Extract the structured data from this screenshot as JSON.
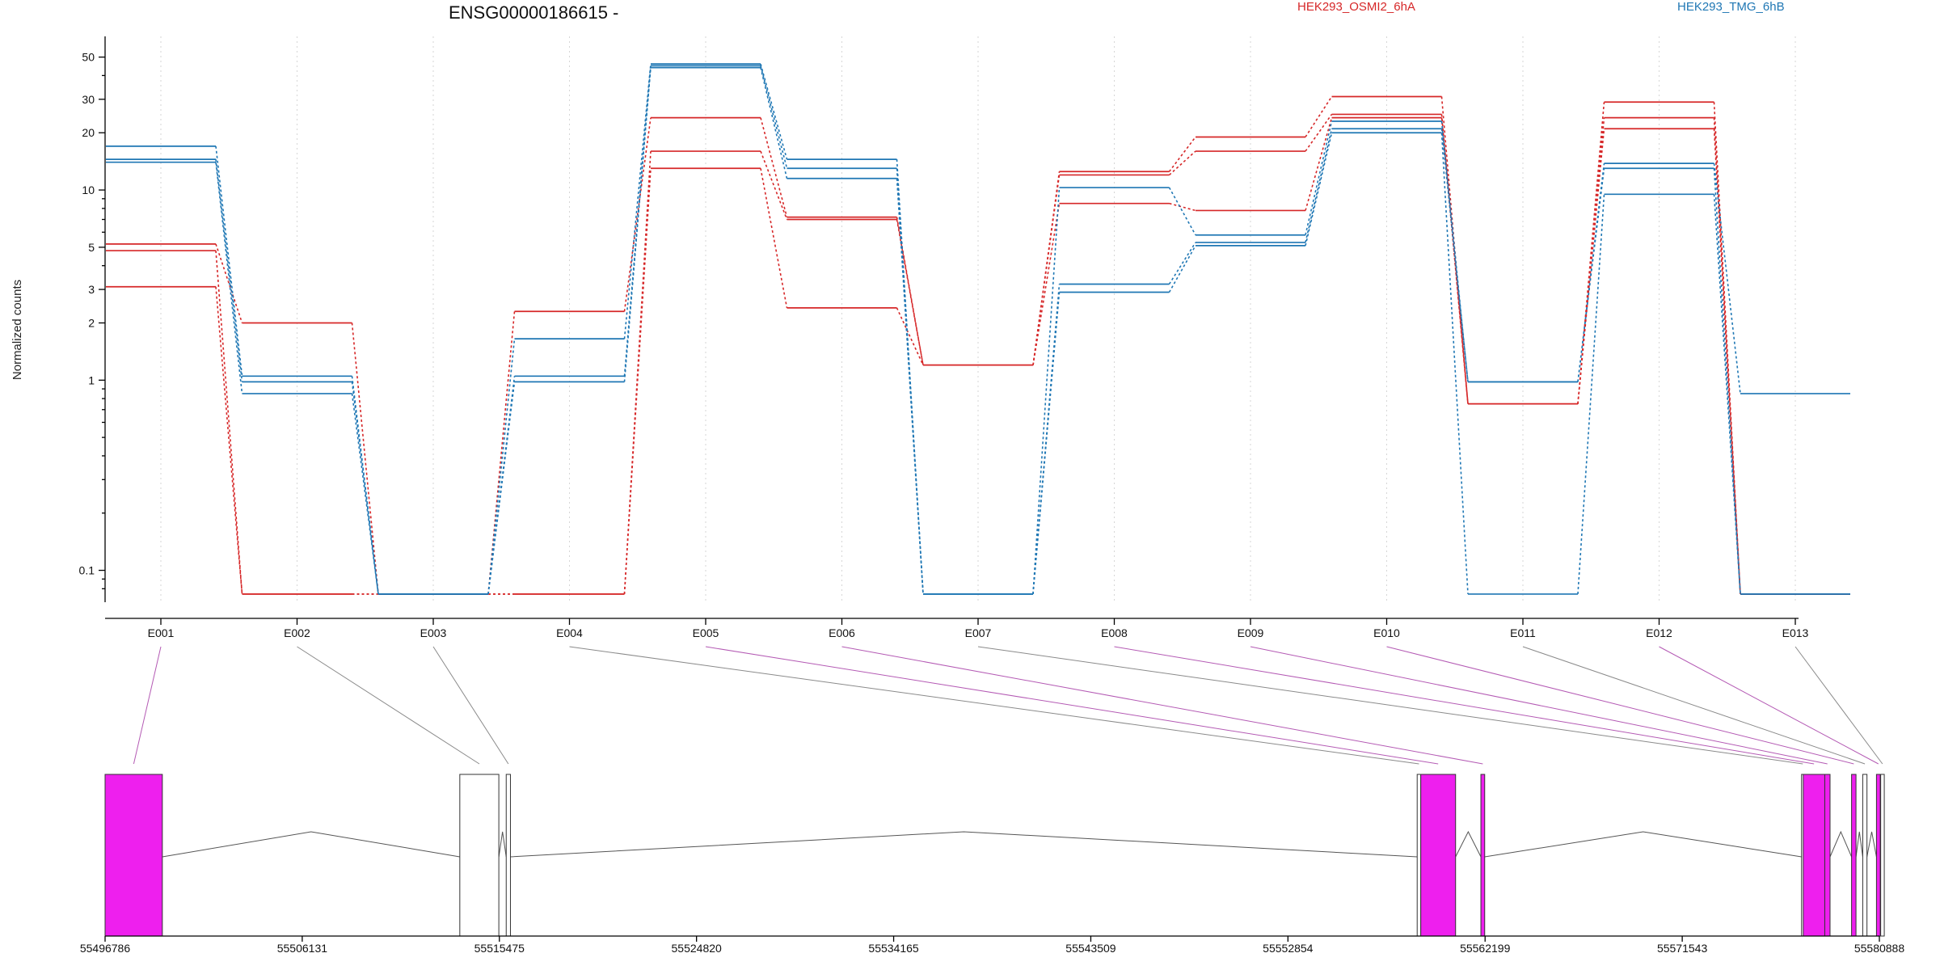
{
  "chart_data": {
    "type": "line",
    "title": "ENSG00000186615 -",
    "ylabel": "Normalized counts",
    "y_scale": "log",
    "ylim": [
      0.07,
      60
    ],
    "y_ticks": [
      0.1,
      1,
      2,
      3,
      5,
      10,
      20,
      30,
      50
    ],
    "y_tick_labels": [
      "0.1",
      "1",
      "2",
      "3",
      "5",
      "10",
      "20",
      "30",
      "50"
    ],
    "grid": true,
    "legend_placement": "top",
    "categories": [
      "E001",
      "E002",
      "E003",
      "E004",
      "E005",
      "E006",
      "E007",
      "E008",
      "E009",
      "E010",
      "E011",
      "E012",
      "E013"
    ],
    "groups": [
      {
        "label": "HEK293_OSMI2_6hA",
        "color": "#d62728"
      },
      {
        "label": "HEK293_TMG_6hB",
        "color": "#1f77b4"
      }
    ],
    "series": [
      {
        "group": 0,
        "values": [
          5.2,
          2.0,
          0.075,
          2.3,
          24,
          7.2,
          1.2,
          12.5,
          19,
          31,
          0.75,
          29,
          0.075
        ]
      },
      {
        "group": 0,
        "values": [
          4.8,
          0.075,
          0.075,
          0.075,
          16,
          7.0,
          1.2,
          12.0,
          16,
          25,
          0.75,
          24,
          0.075
        ]
      },
      {
        "group": 0,
        "values": [
          3.1,
          0.075,
          0.075,
          0.075,
          13,
          2.4,
          1.2,
          8.5,
          7.8,
          24,
          0.75,
          21,
          0.075
        ]
      },
      {
        "group": 1,
        "values": [
          17,
          1.05,
          0.075,
          1.65,
          46,
          14.5,
          0.075,
          10.3,
          5.8,
          23,
          0.98,
          13.8,
          0.85
        ]
      },
      {
        "group": 1,
        "values": [
          14.5,
          0.98,
          0.075,
          1.05,
          45,
          13,
          0.075,
          3.2,
          5.3,
          21,
          0.98,
          13,
          0.075
        ]
      },
      {
        "group": 1,
        "values": [
          14,
          0.85,
          0.075,
          0.98,
          44,
          11.5,
          0.075,
          2.9,
          5.1,
          20,
          0.075,
          9.5,
          0.075
        ]
      }
    ],
    "gene_model": {
      "coordinate_ticks": [
        "55496786",
        "55506131",
        "55515475",
        "55524820",
        "55534165",
        "55543509",
        "55552854",
        "55562199",
        "55571543",
        "55580888"
      ],
      "coord_start": 55496786,
      "coord_end": 55580888,
      "exons": [
        {
          "id": "E001",
          "start": 55496786,
          "end": 55499500,
          "highlight": true
        },
        {
          "id": "E002",
          "start": 55513600,
          "end": 55515450,
          "highlight": false
        },
        {
          "id": "E003",
          "start": 55515800,
          "end": 55516000,
          "highlight": false
        },
        {
          "id": "E004",
          "start": 55558980,
          "end": 55559150,
          "highlight": false
        },
        {
          "id": "E005",
          "start": 55559150,
          "end": 55560800,
          "highlight": true
        },
        {
          "id": "E006",
          "start": 55562000,
          "end": 55562180,
          "highlight": true
        },
        {
          "id": "E007",
          "start": 55577200,
          "end": 55577280,
          "highlight": false
        },
        {
          "id": "E008",
          "start": 55577280,
          "end": 55578300,
          "highlight": true
        },
        {
          "id": "E009",
          "start": 55578300,
          "end": 55578550,
          "highlight": true
        },
        {
          "id": "E010",
          "start": 55579570,
          "end": 55579780,
          "highlight": true
        },
        {
          "id": "E011",
          "start": 55580100,
          "end": 55580300,
          "highlight": false
        },
        {
          "id": "E012",
          "start": 55580750,
          "end": 55580930,
          "highlight": true
        },
        {
          "id": "E013",
          "start": 55580950,
          "end": 55581120,
          "highlight": false
        }
      ],
      "colors": {
        "highlight": "#ee1fee",
        "plain": "#ffffff",
        "link_highlight": "#b45ab4",
        "link_plain": "#8a8a8a",
        "intron": "#555555"
      }
    }
  }
}
